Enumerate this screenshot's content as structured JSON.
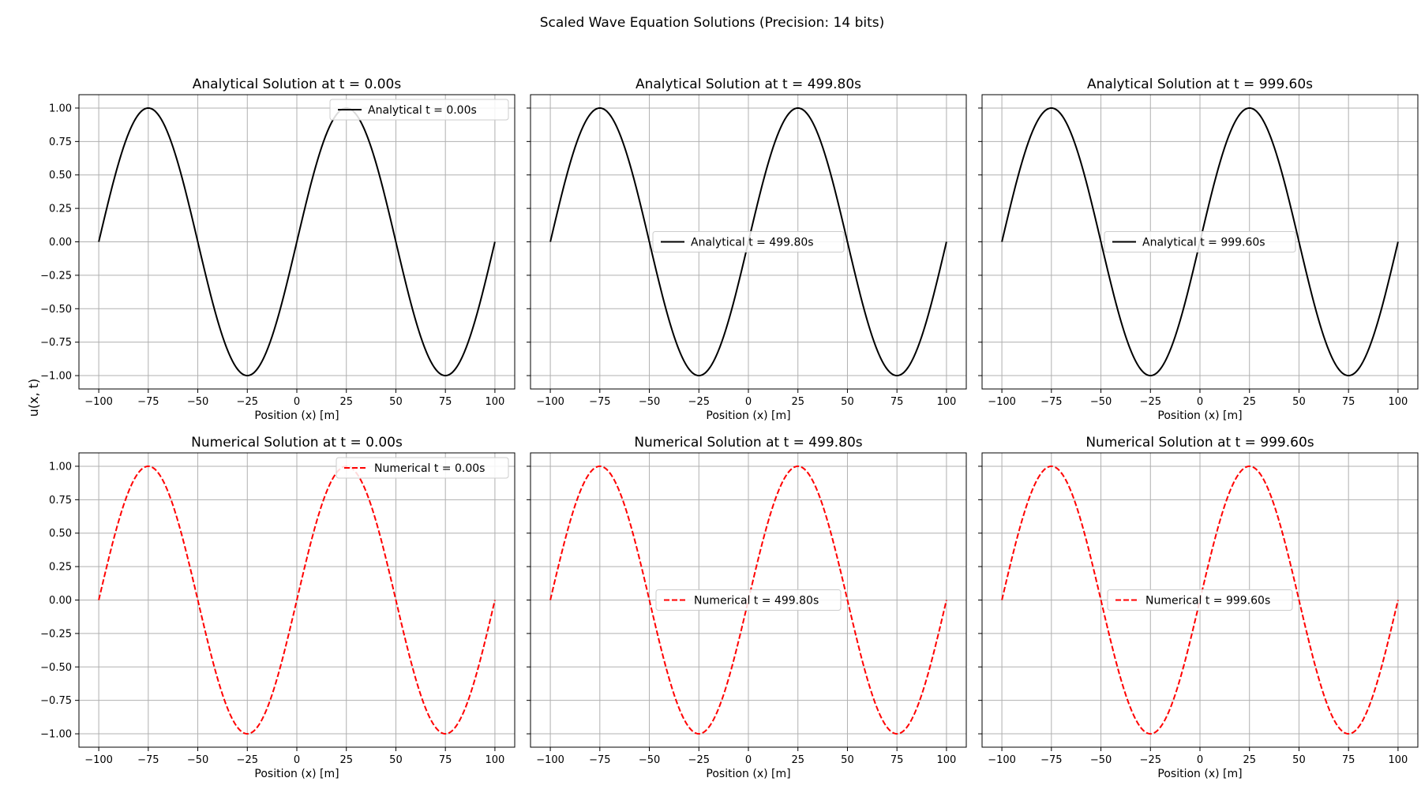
{
  "figure": {
    "suptitle": "Scaled Wave Equation Solutions (Precision: 14 bits)",
    "ylabel": "u(x, t)"
  },
  "chart_data": [
    {
      "type": "line",
      "title": "Analytical Solution at t = 0.00s",
      "xlabel": "Position (x) [m]",
      "ylabel": "",
      "xlim": [
        -110,
        110
      ],
      "ylim": [
        -1.1,
        1.1
      ],
      "xticks": [
        -100,
        -75,
        -50,
        -25,
        0,
        25,
        50,
        75,
        100
      ],
      "xtick_labels": [
        "−100",
        "−75",
        "−50",
        "−25",
        "0",
        "25",
        "50",
        "75",
        "100"
      ],
      "yticks": [
        1.0,
        0.75,
        0.5,
        0.25,
        0.0,
        -0.25,
        -0.5,
        -0.75,
        -1.0
      ],
      "ytick_labels": [
        "1.00",
        "0.75",
        "0.50",
        "0.25",
        "0.00",
        "−0.25",
        "−0.50",
        "−0.75",
        "−1.00"
      ],
      "grid": true,
      "legend_position": "upper right",
      "series": [
        {
          "name": "Analytical t = 0.00s",
          "color": "#000000",
          "style": "solid",
          "x": [
            -100,
            -75,
            -50,
            -25,
            0,
            25,
            50,
            75,
            100
          ],
          "y": [
            0,
            1,
            0,
            -1,
            0,
            1,
            0,
            -1,
            0
          ]
        }
      ]
    },
    {
      "type": "line",
      "title": "Analytical Solution at t = 499.80s",
      "xlabel": "Position (x) [m]",
      "ylabel": "",
      "xlim": [
        -110,
        110
      ],
      "ylim": [
        -1.1,
        1.1
      ],
      "xticks": [
        -100,
        -75,
        -50,
        -25,
        0,
        25,
        50,
        75,
        100
      ],
      "xtick_labels": [
        "−100",
        "−75",
        "−50",
        "−25",
        "0",
        "25",
        "50",
        "75",
        "100"
      ],
      "yticks": [
        1.0,
        0.75,
        0.5,
        0.25,
        0.0,
        -0.25,
        -0.5,
        -0.75,
        -1.0
      ],
      "ytick_labels": [],
      "grid": true,
      "legend_position": "center",
      "series": [
        {
          "name": "Analytical t = 499.80s",
          "color": "#000000",
          "style": "solid",
          "x": [
            -100,
            -75,
            -50,
            -25,
            0,
            25,
            50,
            75,
            100
          ],
          "y": [
            0,
            1,
            0,
            -1,
            0,
            1,
            0,
            -1,
            0
          ]
        }
      ]
    },
    {
      "type": "line",
      "title": "Analytical Solution at t = 999.60s",
      "xlabel": "Position (x) [m]",
      "ylabel": "",
      "xlim": [
        -110,
        110
      ],
      "ylim": [
        -1.1,
        1.1
      ],
      "xticks": [
        -100,
        -75,
        -50,
        -25,
        0,
        25,
        50,
        75,
        100
      ],
      "xtick_labels": [
        "−100",
        "−75",
        "−50",
        "−25",
        "0",
        "25",
        "50",
        "75",
        "100"
      ],
      "yticks": [
        1.0,
        0.75,
        0.5,
        0.25,
        0.0,
        -0.25,
        -0.5,
        -0.75,
        -1.0
      ],
      "ytick_labels": [],
      "grid": true,
      "legend_position": "center",
      "series": [
        {
          "name": "Analytical t = 999.60s",
          "color": "#000000",
          "style": "solid",
          "x": [
            -100,
            -75,
            -50,
            -25,
            0,
            25,
            50,
            75,
            100
          ],
          "y": [
            0,
            1,
            0,
            -1,
            0,
            1,
            0,
            -1,
            0
          ]
        }
      ]
    },
    {
      "type": "line",
      "title": "Numerical Solution at t = 0.00s",
      "xlabel": "Position (x) [m]",
      "ylabel": "",
      "xlim": [
        -110,
        110
      ],
      "ylim": [
        -1.1,
        1.1
      ],
      "xticks": [
        -100,
        -75,
        -50,
        -25,
        0,
        25,
        50,
        75,
        100
      ],
      "xtick_labels": [
        "−100",
        "−75",
        "−50",
        "−25",
        "0",
        "25",
        "50",
        "75",
        "100"
      ],
      "yticks": [
        1.0,
        0.75,
        0.5,
        0.25,
        0.0,
        -0.25,
        -0.5,
        -0.75,
        -1.0
      ],
      "ytick_labels": [
        "1.00",
        "0.75",
        "0.50",
        "0.25",
        "0.00",
        "−0.25",
        "−0.50",
        "−0.75",
        "−1.00"
      ],
      "grid": true,
      "legend_position": "upper right",
      "series": [
        {
          "name": "Numerical t = 0.00s",
          "color": "#ff0000",
          "style": "dashed",
          "x": [
            -100,
            -75,
            -50,
            -25,
            0,
            25,
            50,
            75,
            100
          ],
          "y": [
            0,
            1,
            0,
            -1,
            0,
            1,
            0,
            -1,
            0
          ]
        }
      ]
    },
    {
      "type": "line",
      "title": "Numerical Solution at t = 499.80s",
      "xlabel": "Position (x) [m]",
      "ylabel": "",
      "xlim": [
        -110,
        110
      ],
      "ylim": [
        -1.1,
        1.1
      ],
      "xticks": [
        -100,
        -75,
        -50,
        -25,
        0,
        25,
        50,
        75,
        100
      ],
      "xtick_labels": [
        "−100",
        "−75",
        "−50",
        "−25",
        "0",
        "25",
        "50",
        "75",
        "100"
      ],
      "yticks": [
        1.0,
        0.75,
        0.5,
        0.25,
        0.0,
        -0.25,
        -0.5,
        -0.75,
        -1.0
      ],
      "ytick_labels": [],
      "grid": true,
      "legend_position": "center",
      "series": [
        {
          "name": "Numerical t = 499.80s",
          "color": "#ff0000",
          "style": "dashed",
          "x": [
            -100,
            -75,
            -50,
            -25,
            0,
            25,
            50,
            75,
            100
          ],
          "y": [
            0,
            1,
            0,
            -1,
            0,
            1,
            0,
            -1,
            0
          ]
        }
      ]
    },
    {
      "type": "line",
      "title": "Numerical Solution at t = 999.60s",
      "xlabel": "Position (x) [m]",
      "ylabel": "",
      "xlim": [
        -110,
        110
      ],
      "ylim": [
        -1.1,
        1.1
      ],
      "xticks": [
        -100,
        -75,
        -50,
        -25,
        0,
        25,
        50,
        75,
        100
      ],
      "xtick_labels": [
        "−100",
        "−75",
        "−50",
        "−25",
        "0",
        "25",
        "50",
        "75",
        "100"
      ],
      "yticks": [
        1.0,
        0.75,
        0.5,
        0.25,
        0.0,
        -0.25,
        -0.5,
        -0.75,
        -1.0
      ],
      "ytick_labels": [],
      "grid": true,
      "legend_position": "center",
      "series": [
        {
          "name": "Numerical t = 999.60s",
          "color": "#ff0000",
          "style": "dashed",
          "x": [
            -100,
            -75,
            -50,
            -25,
            0,
            25,
            50,
            75,
            100
          ],
          "y": [
            0,
            1,
            0,
            -1,
            0,
            1,
            0,
            -1,
            0
          ]
        }
      ]
    }
  ]
}
